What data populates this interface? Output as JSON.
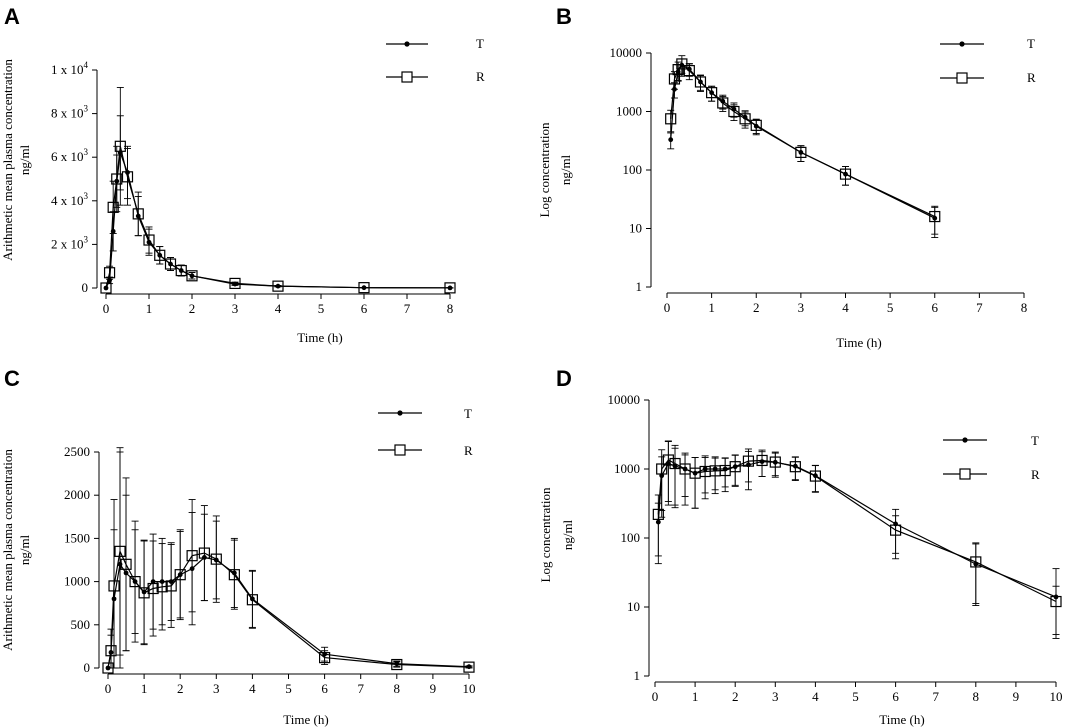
{
  "chart_data": [
    {
      "panel": "A",
      "type": "line",
      "title": "",
      "xlabel": "Time (h)",
      "ylabel": [
        "Arithmetic mean plasma concentration",
        "ng/ml"
      ],
      "yscale": "linear",
      "xlim": [
        0,
        8
      ],
      "ylim": [
        0,
        10000
      ],
      "xticks": [
        0,
        1,
        2,
        3,
        4,
        5,
        6,
        7,
        8
      ],
      "yticks": [
        {
          "value": 0,
          "label": "0"
        },
        {
          "value": 2000,
          "label": "2 x 10",
          "exp": "3"
        },
        {
          "value": 4000,
          "label": "4 x 10",
          "exp": "3"
        },
        {
          "value": 6000,
          "label": "6 x 10",
          "exp": "3"
        },
        {
          "value": 8000,
          "label": "8 x 10",
          "exp": "3"
        },
        {
          "value": 10000,
          "label": "1 x 10",
          "exp": "4"
        }
      ],
      "legend": {
        "position": "top-right",
        "entries": [
          {
            "name": "T",
            "marker": "dot"
          },
          {
            "name": "R",
            "marker": "square"
          }
        ]
      },
      "series": [
        {
          "name": "T",
          "marker": "dot",
          "x": [
            0,
            0.083,
            0.167,
            0.25,
            0.333,
            0.5,
            0.75,
            1,
            1.25,
            1.5,
            1.75,
            2,
            3,
            4,
            6,
            8
          ],
          "y": [
            0,
            350,
            2600,
            4900,
            6200,
            5300,
            3300,
            2100,
            1500,
            1100,
            800,
            560,
            180,
            85,
            15,
            5
          ],
          "err": [
            0,
            150,
            900,
            1200,
            1700,
            1200,
            900,
            600,
            400,
            300,
            250,
            150,
            60,
            30,
            8,
            3
          ]
        },
        {
          "name": "R",
          "marker": "square",
          "x": [
            0,
            0.083,
            0.167,
            0.25,
            0.333,
            0.5,
            0.75,
            1,
            1.25,
            1.5,
            1.75,
            2,
            3,
            4,
            6,
            8
          ],
          "y": [
            0,
            700,
            3700,
            5000,
            6500,
            5100,
            3400,
            2200,
            1500,
            1100,
            800,
            560,
            210,
            85,
            16,
            6
          ],
          "err": [
            0,
            300,
            1200,
            1500,
            2700,
            1300,
            1000,
            600,
            400,
            300,
            250,
            150,
            60,
            30,
            8,
            3
          ]
        }
      ]
    },
    {
      "panel": "B",
      "type": "line",
      "title": "",
      "xlabel": "Time (h)",
      "ylabel": [
        "Log concentration",
        "ng/ml"
      ],
      "yscale": "log",
      "xlim": [
        0,
        8
      ],
      "ylim": [
        1,
        10000
      ],
      "xticks": [
        0,
        1,
        2,
        3,
        4,
        5,
        6,
        7,
        8
      ],
      "yticks": [
        {
          "value": 1,
          "label": "1"
        },
        {
          "value": 10,
          "label": "10"
        },
        {
          "value": 100,
          "label": "100"
        },
        {
          "value": 1000,
          "label": "1000"
        },
        {
          "value": 10000,
          "label": "10000"
        }
      ],
      "legend": {
        "position": "top-right",
        "entries": [
          {
            "name": "T",
            "marker": "dot"
          },
          {
            "name": "R",
            "marker": "square"
          }
        ]
      },
      "series": [
        {
          "name": "T",
          "marker": "dot",
          "x": [
            0.083,
            0.167,
            0.25,
            0.333,
            0.5,
            0.75,
            1,
            1.25,
            1.5,
            1.75,
            2,
            3,
            4,
            6
          ],
          "y": [
            330,
            2400,
            4800,
            6200,
            5300,
            3200,
            2100,
            1500,
            1100,
            800,
            560,
            200,
            85,
            15
          ],
          "err": [
            100,
            700,
            1500,
            1700,
            1300,
            900,
            600,
            400,
            300,
            230,
            160,
            60,
            30,
            8
          ]
        },
        {
          "name": "R",
          "marker": "square",
          "x": [
            0.083,
            0.167,
            0.25,
            0.333,
            0.5,
            0.75,
            1,
            1.25,
            1.5,
            1.75,
            2,
            3,
            4,
            6
          ],
          "y": [
            750,
            3600,
            5200,
            6500,
            5000,
            3200,
            2100,
            1400,
            1000,
            750,
            580,
            200,
            85,
            16
          ],
          "err": [
            300,
            1200,
            1800,
            2500,
            1500,
            1000,
            600,
            400,
            300,
            230,
            160,
            60,
            30,
            8
          ]
        }
      ]
    },
    {
      "panel": "C",
      "type": "line",
      "title": "",
      "xlabel": "Time (h)",
      "ylabel": [
        "Arithmetic mean plasma concentration",
        "ng/ml"
      ],
      "yscale": "linear",
      "xlim": [
        0,
        10
      ],
      "ylim": [
        0,
        2500
      ],
      "xticks": [
        0,
        1,
        2,
        3,
        4,
        5,
        6,
        7,
        8,
        9,
        10
      ],
      "yticks": [
        {
          "value": 0,
          "label": "0"
        },
        {
          "value": 500,
          "label": "500"
        },
        {
          "value": 1000,
          "label": "1000"
        },
        {
          "value": 1500,
          "label": "1500"
        },
        {
          "value": 2000,
          "label": "2000"
        },
        {
          "value": 2500,
          "label": "2500"
        }
      ],
      "legend": {
        "position": "top-right",
        "entries": [
          {
            "name": "T",
            "marker": "dot"
          },
          {
            "name": "R",
            "marker": "square"
          }
        ]
      },
      "series": [
        {
          "name": "T",
          "marker": "dot",
          "x": [
            0,
            0.083,
            0.167,
            0.333,
            0.5,
            0.75,
            1,
            1.25,
            1.5,
            1.75,
            2,
            2.33,
            2.67,
            3,
            3.5,
            4,
            6,
            8,
            10
          ],
          "y": [
            0,
            180,
            800,
            1200,
            1100,
            1000,
            880,
            1000,
            1000,
            1000,
            1080,
            1150,
            1280,
            1250,
            1100,
            800,
            160,
            50,
            15
          ],
          "err": [
            0,
            200,
            800,
            1300,
            900,
            600,
            600,
            550,
            500,
            450,
            500,
            650,
            500,
            450,
            400,
            330,
            80,
            30,
            10
          ]
        },
        {
          "name": "R",
          "marker": "square",
          "x": [
            0,
            0.083,
            0.167,
            0.333,
            0.5,
            0.75,
            1,
            1.25,
            1.5,
            1.75,
            2,
            2.33,
            2.67,
            3,
            3.5,
            4,
            6,
            8,
            10
          ],
          "y": [
            0,
            200,
            950,
            1350,
            1200,
            1000,
            870,
            920,
            940,
            950,
            1080,
            1300,
            1330,
            1260,
            1080,
            790,
            120,
            40,
            10
          ],
          "err": [
            0,
            250,
            1000,
            1200,
            1000,
            700,
            600,
            550,
            500,
            480,
            520,
            650,
            550,
            500,
            400,
            330,
            80,
            30,
            10
          ]
        }
      ]
    },
    {
      "panel": "D",
      "type": "line",
      "title": "",
      "xlabel": "Time (h)",
      "ylabel": [
        "Log concentration",
        "ng/ml"
      ],
      "yscale": "log",
      "xlim": [
        0,
        10
      ],
      "ylim": [
        1,
        10000
      ],
      "xticks": [
        0,
        1,
        2,
        3,
        4,
        5,
        6,
        7,
        8,
        9,
        10
      ],
      "yticks": [
        {
          "value": 1,
          "label": "1"
        },
        {
          "value": 10,
          "label": "10"
        },
        {
          "value": 100,
          "label": "100"
        },
        {
          "value": 1000,
          "label": "1000"
        },
        {
          "value": 10000,
          "label": "10000"
        }
      ],
      "legend": {
        "position": "top-right",
        "entries": [
          {
            "name": "T",
            "marker": "dot"
          },
          {
            "name": "R",
            "marker": "square"
          }
        ]
      },
      "series": [
        {
          "name": "T",
          "marker": "dot",
          "x": [
            0.083,
            0.167,
            0.333,
            0.5,
            0.75,
            1,
            1.25,
            1.5,
            1.75,
            2,
            2.33,
            2.67,
            3,
            3.5,
            4,
            6,
            8,
            10
          ],
          "y": [
            170,
            800,
            1200,
            1100,
            1000,
            870,
            1000,
            1000,
            1000,
            1080,
            1150,
            1280,
            1250,
            1100,
            800,
            160,
            42,
            14
          ],
          "err": [
            150,
            700,
            1300,
            900,
            600,
            600,
            550,
            500,
            450,
            500,
            650,
            500,
            450,
            400,
            330,
            100,
            40,
            22
          ]
        },
        {
          "name": "R",
          "marker": "square",
          "x": [
            0.083,
            0.167,
            0.333,
            0.5,
            0.75,
            1,
            1.25,
            1.5,
            1.75,
            2,
            2.33,
            2.67,
            3,
            3.5,
            4,
            6,
            8,
            10
          ],
          "y": [
            220,
            1000,
            1350,
            1200,
            1000,
            870,
            920,
            940,
            950,
            1080,
            1300,
            1330,
            1260,
            1080,
            790,
            130,
            45,
            12
          ],
          "err": [
            200,
            900,
            1200,
            1000,
            700,
            600,
            550,
            500,
            480,
            520,
            650,
            550,
            500,
            400,
            330,
            80,
            40,
            8
          ]
        }
      ]
    }
  ]
}
